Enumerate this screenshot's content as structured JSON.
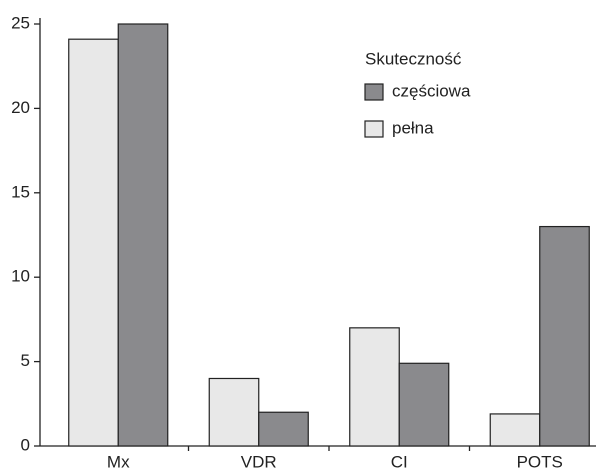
{
  "chart_data": {
    "type": "bar",
    "categories": [
      "Mx",
      "VDR",
      "CI",
      "POTS"
    ],
    "series": [
      {
        "name": "pełna",
        "color": "#e8e8e8",
        "values": [
          24.1,
          4,
          7,
          1.9
        ]
      },
      {
        "name": "częściowa",
        "color": "#8a8a8d",
        "values": [
          25,
          2,
          4.9,
          13
        ]
      }
    ],
    "legend_title": "Skuteczność",
    "ylim": [
      0,
      25
    ],
    "yticks": [
      0,
      5,
      10,
      15,
      20,
      25
    ],
    "grid": false,
    "legend": "upper right"
  }
}
